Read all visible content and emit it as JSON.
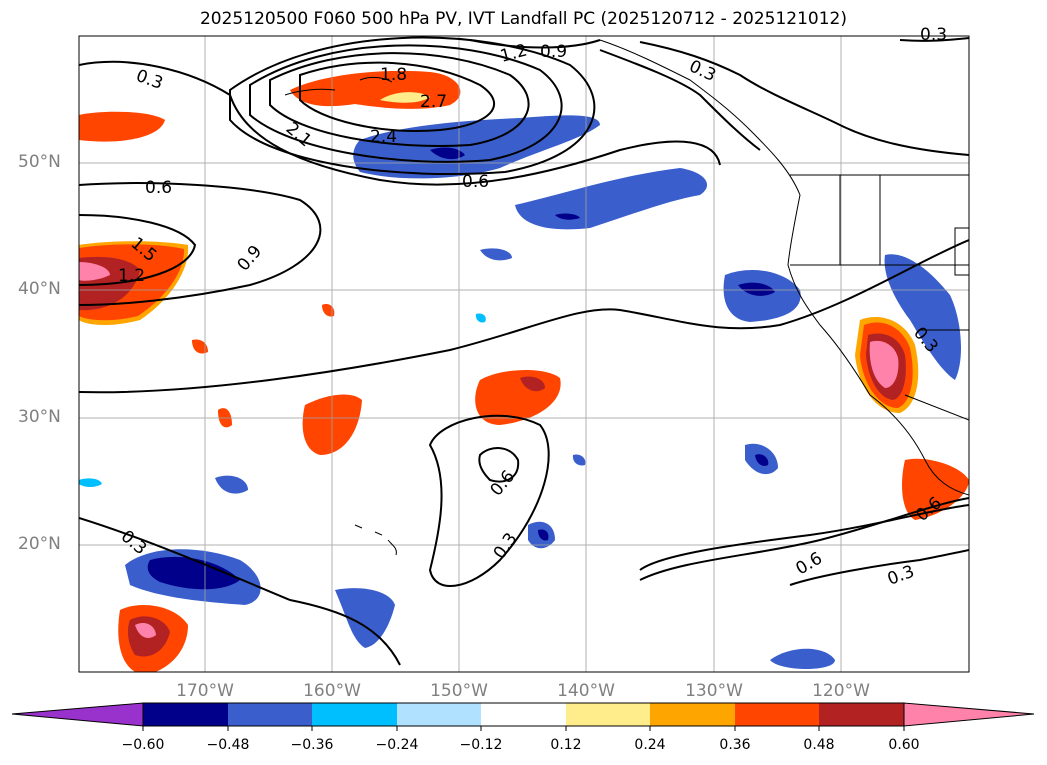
{
  "title": "2025120500 F060 500 hPa PV, IVT Landfall PC (2025120712 - 2025121012)",
  "lat_labels": [
    "50°N",
    "40°N",
    "30°N",
    "20°N"
  ],
  "lon_labels": [
    "170°W",
    "160°W",
    "150°W",
    "140°W",
    "130°W",
    "120°W"
  ],
  "colorbar": {
    "colors": [
      "#9932cc",
      "#00008b",
      "#3a5fcd",
      "#00bfff",
      "#b0e2ff",
      "#ffffff",
      "#ffec8b",
      "#ffa500",
      "#ff4500",
      "#b22222",
      "#ff82ab"
    ],
    "ticks": [
      "−0.60",
      "−0.48",
      "−0.36",
      "−0.24",
      "−0.12",
      "0.12",
      "0.24",
      "0.36",
      "0.48",
      "0.60"
    ]
  },
  "contour_labels": [
    "0.3",
    "1.8",
    "2.7",
    "2.1",
    "2.4",
    "1.2",
    "0.9",
    "0.3",
    "0.6",
    "0.6",
    "1.5",
    "1.2",
    "0.9",
    "0.3",
    "0.6",
    "0.3",
    "0.3",
    "0.6",
    "0.6",
    "0.3",
    "0.3"
  ]
}
